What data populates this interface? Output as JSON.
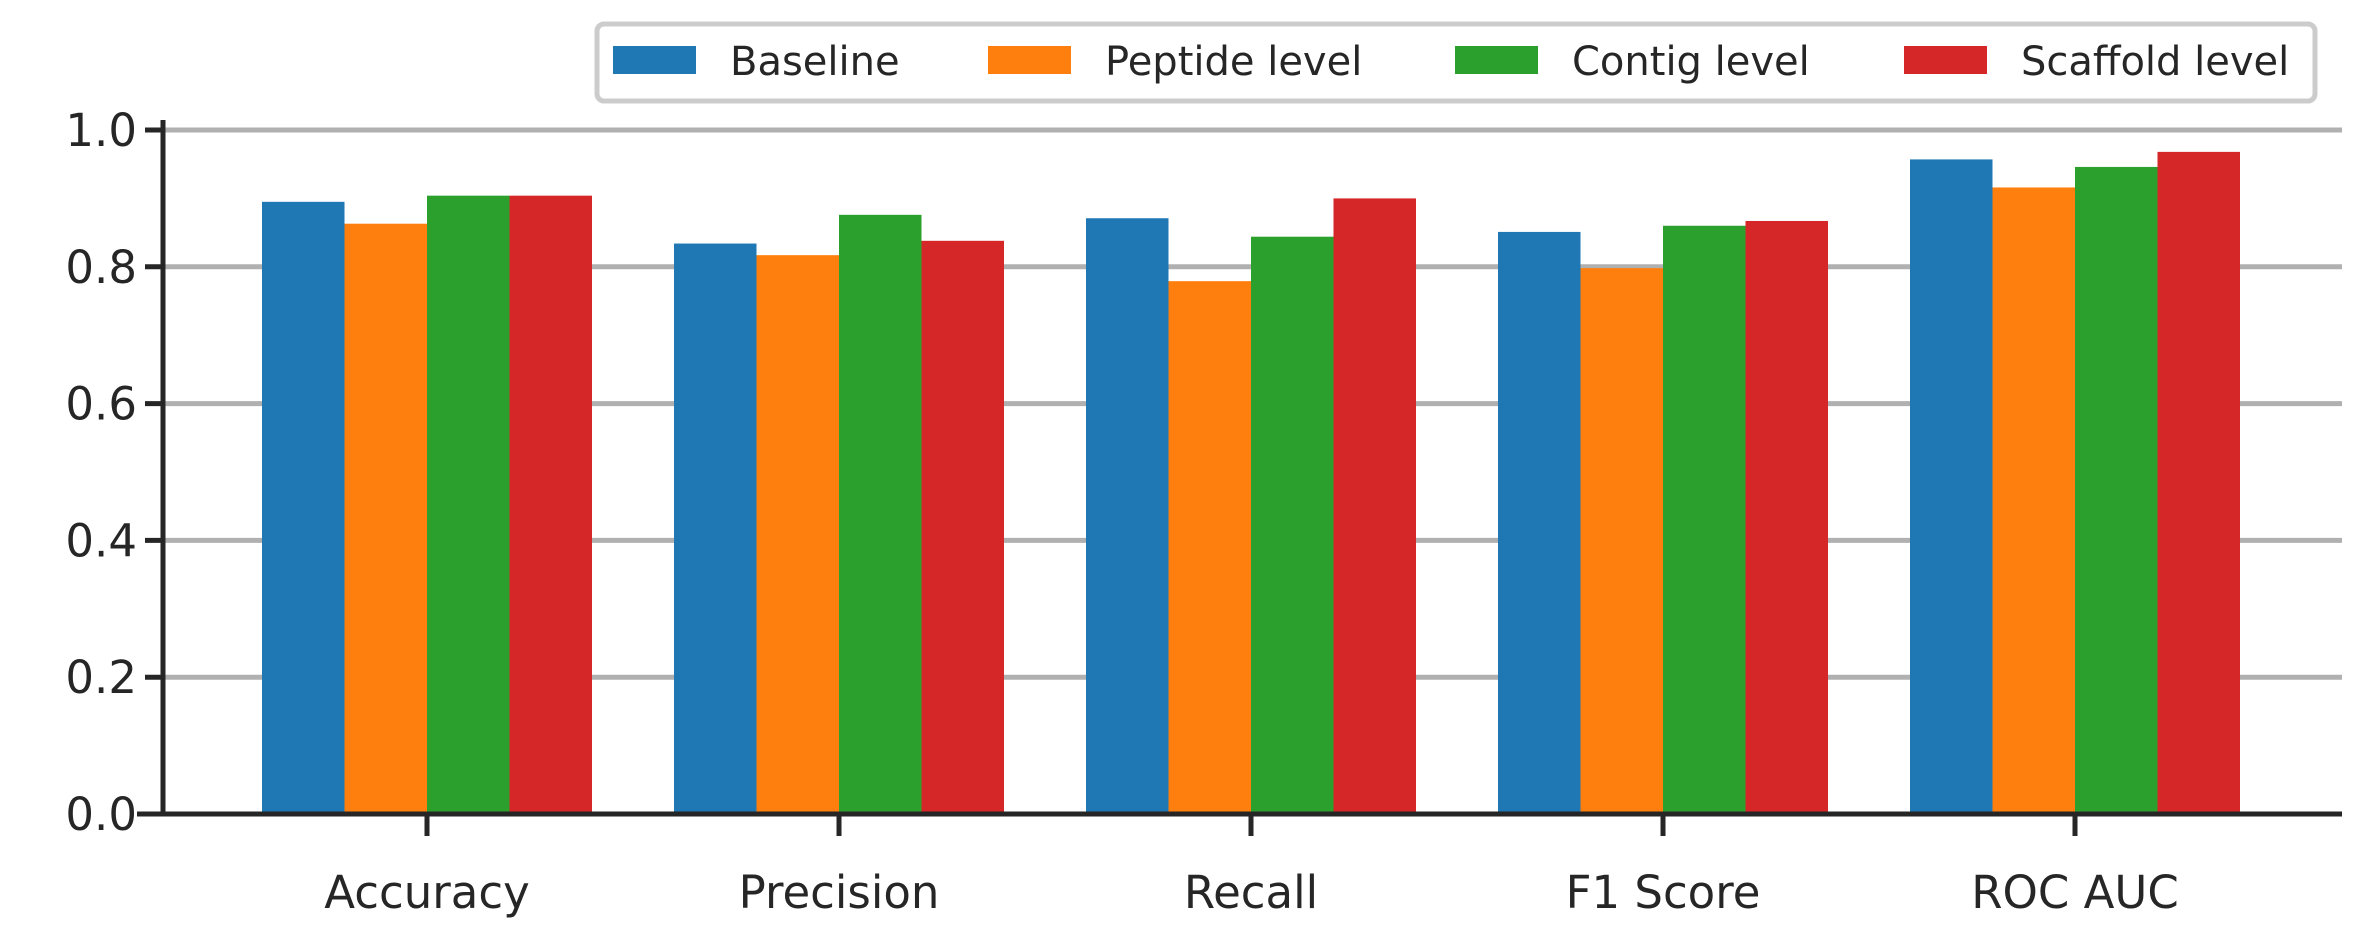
{
  "chart_data": {
    "type": "bar",
    "categories": [
      "Accuracy",
      "Precision",
      "Recall",
      "F1 Score",
      "ROC AUC"
    ],
    "series": [
      {
        "name": "Baseline",
        "color": "#1f77b4",
        "values": [
          0.895,
          0.834,
          0.871,
          0.851,
          0.957
        ]
      },
      {
        "name": "Peptide level",
        "color": "#ff7f0e",
        "values": [
          0.863,
          0.817,
          0.779,
          0.798,
          0.916
        ]
      },
      {
        "name": "Contig level",
        "color": "#2ca02c",
        "values": [
          0.904,
          0.876,
          0.844,
          0.86,
          0.946
        ]
      },
      {
        "name": "Scaffold level",
        "color": "#d62728",
        "values": [
          0.904,
          0.838,
          0.9,
          0.867,
          0.968
        ]
      }
    ],
    "yticks": [
      "0.0",
      "0.2",
      "0.4",
      "0.6",
      "0.8",
      "1.0"
    ],
    "ylim": [
      0,
      1.0
    ],
    "grid": "horizontal",
    "legend": "top-right"
  }
}
